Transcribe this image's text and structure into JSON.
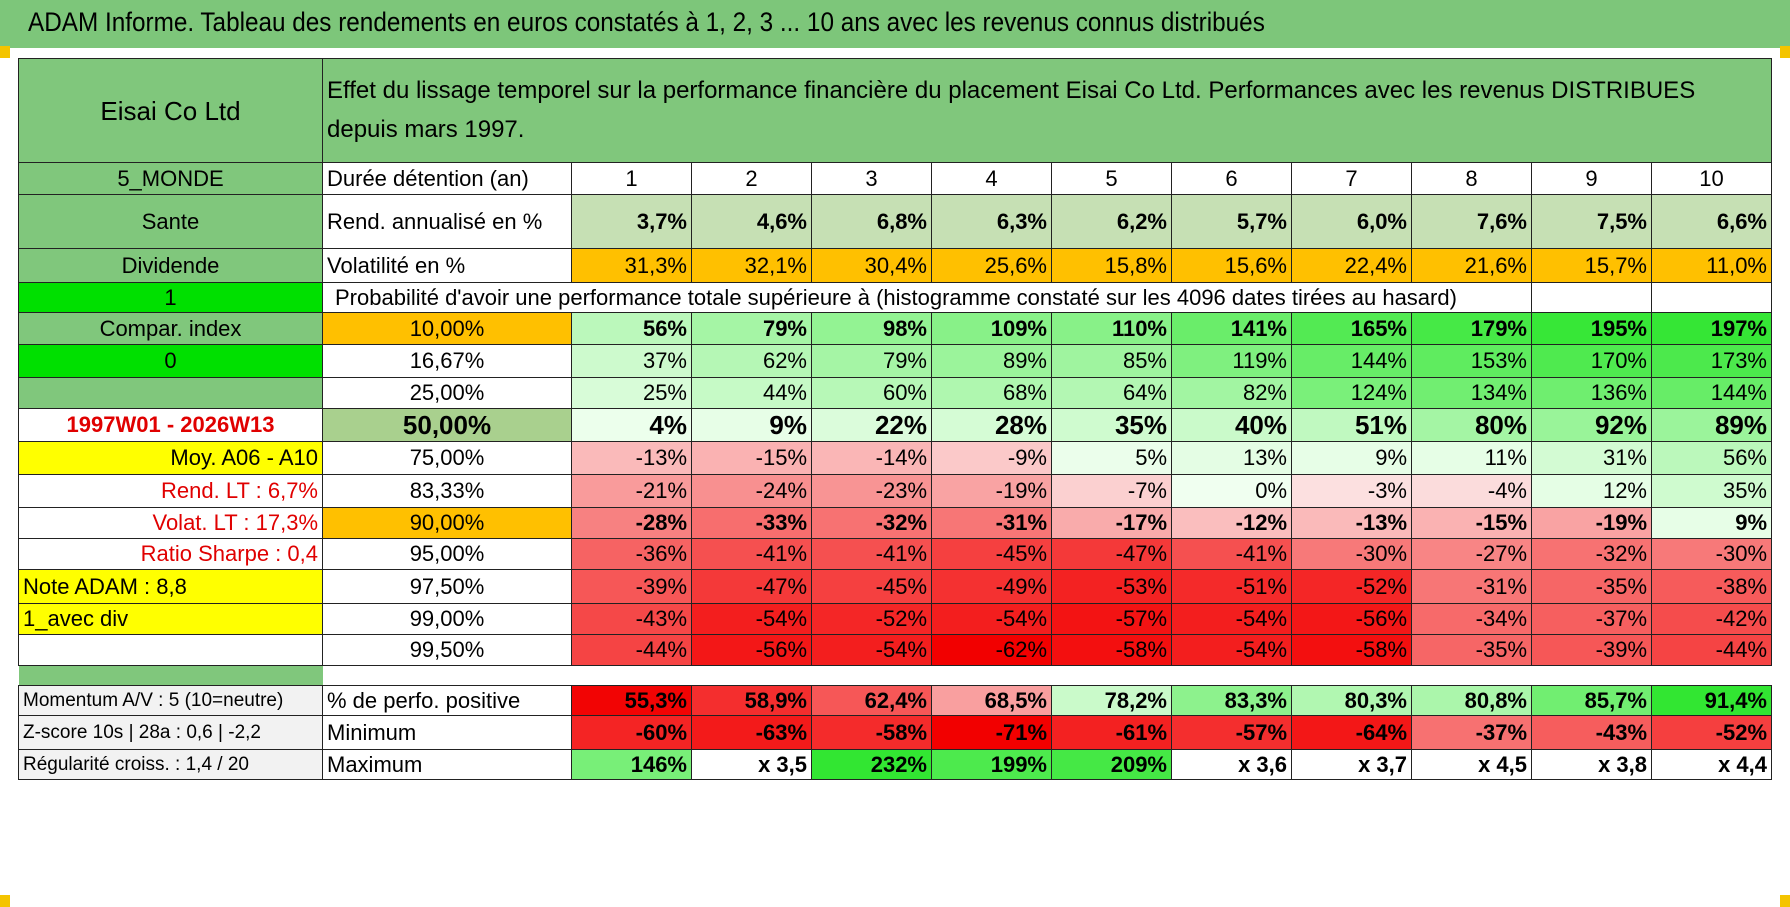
{
  "title": "ADAM Informe. Tableau des rendements en euros constatés à 1, 2, 3 ... 10 ans avec les revenus connus distribués",
  "header": {
    "company": "Eisai Co Ltd",
    "description": "Effet du lissage temporel sur la performance financière du placement Eisai Co Ltd. Performances avec les revenus DISTRIBUES depuis mars 1997."
  },
  "left": {
    "region": "5_MONDE",
    "sector": "Sante",
    "income": "Dividende",
    "flag1": "1",
    "compar": "Compar. index",
    "flag0": "0",
    "empty": "",
    "period": "1997W01 - 2026W13",
    "moy": "Moy. A06 - A10",
    "rend_lt": "Rend. LT :   6,7%",
    "volat_lt": "Volat. LT :   17,3%",
    "sharpe": "Ratio Sharpe :   0,4",
    "note": "Note ADAM : 8,8",
    "avec_div": "1_avec div"
  },
  "years_label": "Durée détention (an)",
  "years": [
    "1",
    "2",
    "3",
    "4",
    "5",
    "6",
    "7",
    "8",
    "9",
    "10"
  ],
  "rend_label": "Rend. annualisé en %",
  "rend": [
    "3,7%",
    "4,6%",
    "6,8%",
    "6,3%",
    "6,2%",
    "5,7%",
    "6,0%",
    "7,6%",
    "7,5%",
    "6,6%"
  ],
  "vol_label": "Volatilité en %",
  "vol": [
    "31,3%",
    "32,1%",
    "30,4%",
    "25,6%",
    "15,8%",
    "15,6%",
    "22,4%",
    "21,6%",
    "15,7%",
    "11,0%"
  ],
  "prob_label": "Probabilité d'avoir une performance totale supérieure à (histogramme constaté sur les 4096 dates tirées au hasard)",
  "quantiles": [
    {
      "p": "10,00%",
      "v": [
        "56%",
        "79%",
        "98%",
        "109%",
        "110%",
        "141%",
        "165%",
        "179%",
        "195%",
        "197%"
      ]
    },
    {
      "p": "16,67%",
      "v": [
        "37%",
        "62%",
        "79%",
        "89%",
        "85%",
        "119%",
        "144%",
        "153%",
        "170%",
        "173%"
      ]
    },
    {
      "p": "25,00%",
      "v": [
        "25%",
        "44%",
        "60%",
        "68%",
        "64%",
        "82%",
        "124%",
        "134%",
        "136%",
        "144%"
      ]
    },
    {
      "p": "50,00%",
      "v": [
        "4%",
        "9%",
        "22%",
        "28%",
        "35%",
        "40%",
        "51%",
        "80%",
        "92%",
        "89%"
      ]
    },
    {
      "p": "75,00%",
      "v": [
        "-13%",
        "-15%",
        "-14%",
        "-9%",
        "5%",
        "13%",
        "9%",
        "11%",
        "31%",
        "56%"
      ]
    },
    {
      "p": "83,33%",
      "v": [
        "-21%",
        "-24%",
        "-23%",
        "-19%",
        "-7%",
        "0%",
        "-3%",
        "-4%",
        "12%",
        "35%"
      ]
    },
    {
      "p": "90,00%",
      "v": [
        "-28%",
        "-33%",
        "-32%",
        "-31%",
        "-17%",
        "-12%",
        "-13%",
        "-15%",
        "-19%",
        "9%"
      ]
    },
    {
      "p": "95,00%",
      "v": [
        "-36%",
        "-41%",
        "-41%",
        "-45%",
        "-47%",
        "-41%",
        "-30%",
        "-27%",
        "-32%",
        "-30%"
      ]
    },
    {
      "p": "97,50%",
      "v": [
        "-39%",
        "-47%",
        "-45%",
        "-49%",
        "-53%",
        "-51%",
        "-52%",
        "-31%",
        "-35%",
        "-38%"
      ]
    },
    {
      "p": "99,00%",
      "v": [
        "-43%",
        "-54%",
        "-52%",
        "-54%",
        "-57%",
        "-54%",
        "-56%",
        "-34%",
        "-37%",
        "-42%"
      ]
    },
    {
      "p": "99,50%",
      "v": [
        "-44%",
        "-56%",
        "-54%",
        "-62%",
        "-58%",
        "-54%",
        "-58%",
        "-35%",
        "-39%",
        "-44%"
      ]
    }
  ],
  "bottom": [
    {
      "left": "Momentum A/V : 5 (10=neutre)",
      "label": "% de perfo. positive",
      "v": [
        "55,3%",
        "58,9%",
        "62,4%",
        "68,5%",
        "78,2%",
        "83,3%",
        "80,3%",
        "80,8%",
        "85,7%",
        "91,4%"
      ]
    },
    {
      "left": "Z-score 10s | 28a : 0,6 | -2,2",
      "label": "Minimum",
      "v": [
        "-60%",
        "-63%",
        "-58%",
        "-71%",
        "-61%",
        "-57%",
        "-64%",
        "-37%",
        "-43%",
        "-52%"
      ]
    },
    {
      "left": "Régularité croiss. : 1,4 / 20",
      "label": "Maximum",
      "v": [
        "146%",
        "x 3,5",
        "232%",
        "199%",
        "209%",
        "x 3,6",
        "x 3,7",
        "x 4,5",
        "x 3,8",
        "x 4,4"
      ]
    }
  ],
  "colors": {
    "green_label": "#80c77c",
    "bright_green": "#00e000",
    "yellow": "#ffff00",
    "orange": "#ffc000",
    "red_text": "#e00000",
    "rend_bg": "#c6e0b4"
  }
}
